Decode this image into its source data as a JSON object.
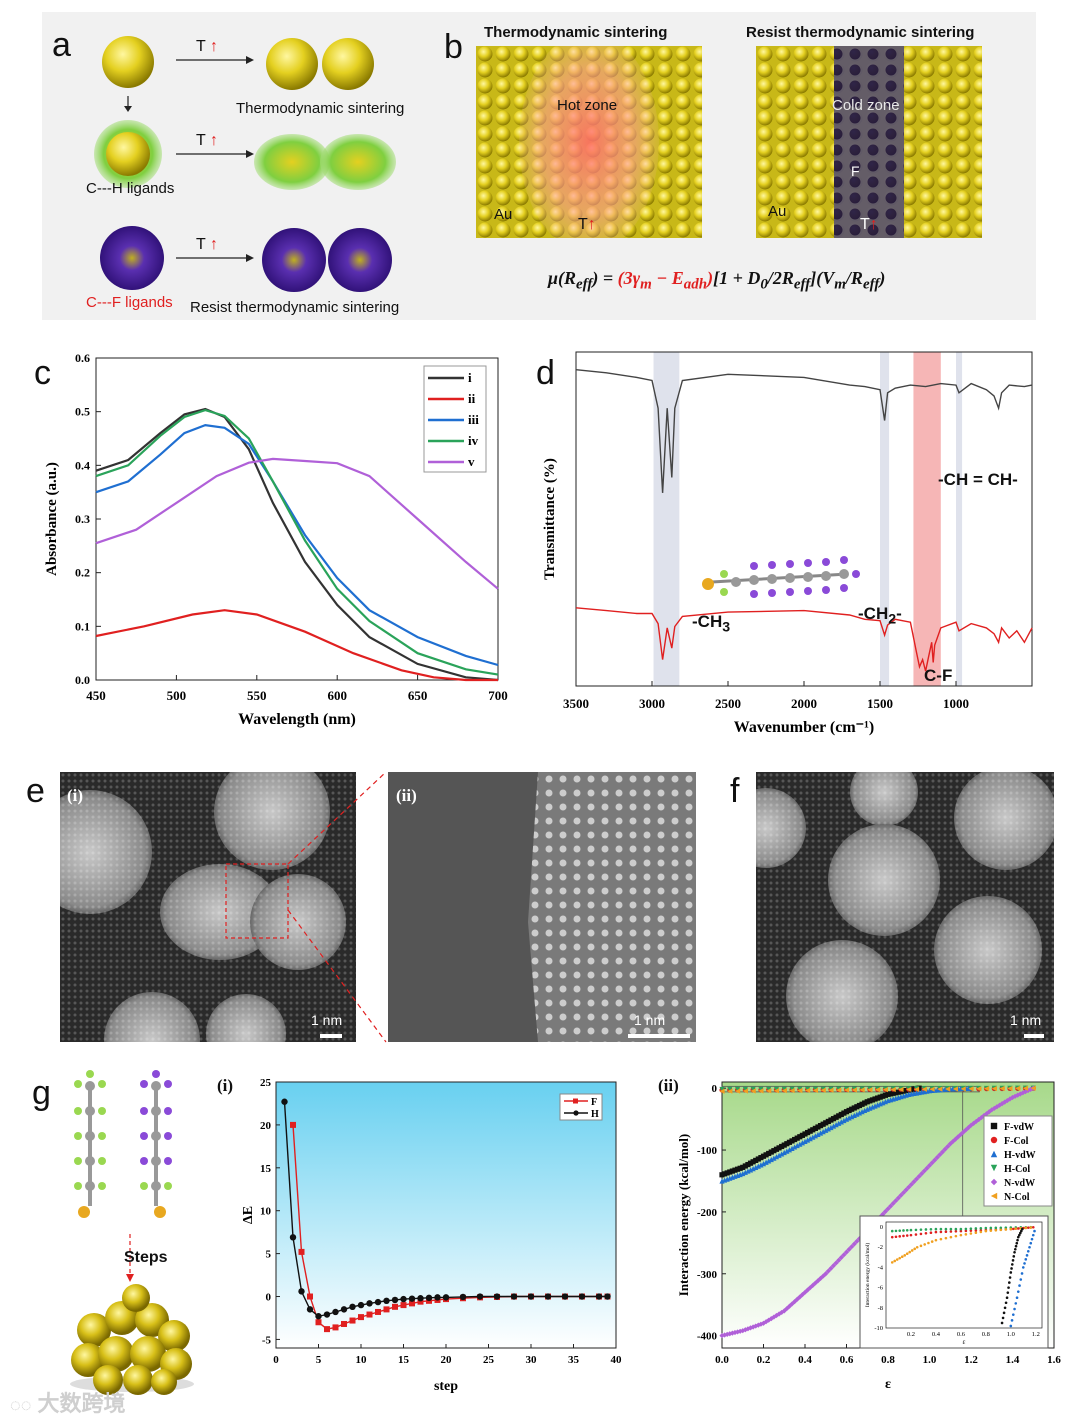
{
  "panels": {
    "a": "a",
    "b": "b",
    "c": "c",
    "d": "d",
    "e": "e",
    "f": "f",
    "g": "g"
  },
  "panel_a": {
    "arrow_label": "T",
    "thermo": "Thermodynamic sintering",
    "ch_ligands": "C---H ligands",
    "cf_ligands": "C---F ligands",
    "resist": "Resist thermodynamic sintering"
  },
  "panel_b": {
    "title_left": "Thermodynamic sintering",
    "title_right": "Resist thermodynamic sintering",
    "hot_zone": "Hot zone",
    "cold_zone": "Cold zone",
    "au": "Au",
    "t": "T",
    "f": "F",
    "eq_mu": "μ(R",
    "eq_eff": "eff",
    "eq_mid": ") = ",
    "eq_red": "(3γ",
    "eq_m": "m",
    "eq_minus": " − E",
    "eq_adh": "adh",
    "eq_close": ")",
    "eq_rest": "[1 + D",
    "eq_0": "0",
    "eq_2r": "/2R",
    "eq_tail": "](V",
    "eq_vm": "m",
    "eq_rr": "/R",
    "eq_end": ")"
  },
  "panel_d": {
    "ch_ch": "-CH = CH-",
    "ch3": "-CH",
    "ch3_sub": "3",
    "ch2": "-CH",
    "ch2_sub": "2",
    "ch2_suffix": "-",
    "cf": "C-F"
  },
  "panel_e": {
    "i": "(i)",
    "ii": "(ii)",
    "scale": "1 nm"
  },
  "panel_f": {
    "scale": "1 nm"
  },
  "panel_g": {
    "steps": "Steps",
    "i": "(i)",
    "ii": "(ii)"
  },
  "colors": {
    "red": "#e02020",
    "black": "#222222",
    "blue": "#1f6fd1",
    "green": "#2aa35a",
    "purple": "#b060d8",
    "gold": "#d9c21f",
    "orange": "#f0a020"
  },
  "chart_data": [
    {
      "id": "c",
      "type": "line",
      "xlabel": "Wavelength (nm)",
      "ylabel": "Absorbance (a.u.)",
      "xlim": [
        450,
        700
      ],
      "ylim": [
        0,
        0.6
      ],
      "xticks": [
        450,
        500,
        550,
        600,
        650,
        700
      ],
      "yticks": [
        0.0,
        0.1,
        0.2,
        0.3,
        0.4,
        0.5,
        0.6
      ],
      "ytick_labels": [
        "0.0",
        "0.1",
        "0.2",
        "0.3",
        "0.4",
        "0.5",
        "0.6"
      ],
      "legend": [
        "i",
        "ii",
        "iii",
        "iv",
        "v"
      ],
      "series": [
        {
          "name": "i",
          "color": "#333333",
          "x": [
            450,
            470,
            490,
            505,
            518,
            530,
            545,
            560,
            580,
            600,
            620,
            650,
            680,
            700
          ],
          "y": [
            0.39,
            0.41,
            0.46,
            0.495,
            0.505,
            0.49,
            0.43,
            0.33,
            0.22,
            0.14,
            0.08,
            0.03,
            0.005,
            0.0
          ]
        },
        {
          "name": "ii",
          "color": "#e02020",
          "x": [
            450,
            480,
            510,
            530,
            550,
            580,
            610,
            640,
            660,
            680,
            700
          ],
          "y": [
            0.082,
            0.1,
            0.122,
            0.13,
            0.122,
            0.09,
            0.05,
            0.018,
            0.005,
            0.0,
            0.0
          ]
        },
        {
          "name": "iii",
          "color": "#1f6fd1",
          "x": [
            450,
            470,
            490,
            505,
            518,
            530,
            545,
            560,
            580,
            600,
            620,
            650,
            680,
            700
          ],
          "y": [
            0.35,
            0.37,
            0.42,
            0.46,
            0.475,
            0.47,
            0.44,
            0.37,
            0.27,
            0.19,
            0.13,
            0.08,
            0.045,
            0.028
          ]
        },
        {
          "name": "iv",
          "color": "#2aa35a",
          "x": [
            450,
            470,
            490,
            505,
            518,
            530,
            545,
            560,
            580,
            600,
            620,
            650,
            680,
            700
          ],
          "y": [
            0.38,
            0.4,
            0.455,
            0.49,
            0.503,
            0.492,
            0.45,
            0.37,
            0.26,
            0.17,
            0.11,
            0.05,
            0.02,
            0.01
          ]
        },
        {
          "name": "v",
          "color": "#b060d8",
          "x": [
            450,
            475,
            500,
            525,
            545,
            560,
            580,
            600,
            620,
            650,
            680,
            700
          ],
          "y": [
            0.255,
            0.28,
            0.33,
            0.38,
            0.405,
            0.412,
            0.408,
            0.404,
            0.38,
            0.3,
            0.22,
            0.17
          ]
        }
      ]
    },
    {
      "id": "d",
      "type": "line",
      "xlabel": "Wavenumber (cm⁻¹)",
      "ylabel": "Transmittance (%)",
      "xlim": [
        3500,
        500
      ],
      "xticks": [
        3500,
        3000,
        2500,
        2000,
        1500,
        1000
      ],
      "bands": [
        {
          "from": 2990,
          "to": 2820,
          "color": "#dfe2ec"
        },
        {
          "from": 1500,
          "to": 1440,
          "color": "#dfe2ec"
        },
        {
          "from": 1280,
          "to": 1100,
          "color": "#f6b6b6"
        },
        {
          "from": 1000,
          "to": 960,
          "color": "#dfe2ec"
        }
      ],
      "series": [
        {
          "name": "top",
          "color": "#444444",
          "x": [
            3500,
            3300,
            3100,
            3000,
            2960,
            2930,
            2900,
            2870,
            2850,
            2800,
            2500,
            2000,
            1700,
            1600,
            1500,
            1470,
            1450,
            1400,
            1300,
            1200,
            1100,
            1000,
            980,
            900,
            800,
            750,
            720,
            700,
            650,
            550,
            500
          ],
          "y": [
            0.95,
            0.93,
            0.9,
            0.88,
            0.7,
            0.15,
            0.7,
            0.25,
            0.7,
            0.88,
            0.92,
            0.9,
            0.85,
            0.84,
            0.82,
            0.62,
            0.8,
            0.83,
            0.85,
            0.84,
            0.86,
            0.85,
            0.8,
            0.86,
            0.82,
            0.78,
            0.7,
            0.8,
            0.85,
            0.84,
            0.85
          ]
        },
        {
          "name": "bottom",
          "color": "#e02020",
          "x": [
            3500,
            3300,
            3100,
            3000,
            2960,
            2930,
            2900,
            2870,
            2850,
            2800,
            2500,
            2000,
            1700,
            1600,
            1500,
            1470,
            1450,
            1400,
            1300,
            1260,
            1240,
            1220,
            1200,
            1180,
            1160,
            1150,
            1140,
            1100,
            1000,
            980,
            900,
            800,
            750,
            720,
            700,
            650,
            600,
            550,
            500
          ],
          "y": [
            0.46,
            0.44,
            0.42,
            0.42,
            0.35,
            0.1,
            0.32,
            0.18,
            0.33,
            0.4,
            0.43,
            0.44,
            0.41,
            0.38,
            0.37,
            0.27,
            0.34,
            0.38,
            0.36,
            0.15,
            0.05,
            0.1,
            0.02,
            0.12,
            0.22,
            0.08,
            0.2,
            0.32,
            0.36,
            0.3,
            0.35,
            0.32,
            0.28,
            0.22,
            0.32,
            0.25,
            0.3,
            0.22,
            0.32
          ]
        }
      ]
    },
    {
      "id": "g-i",
      "type": "line",
      "xlabel": "step",
      "ylabel": "ΔE",
      "xlim": [
        0,
        40
      ],
      "ylim": [
        -6,
        25
      ],
      "xticks": [
        0,
        5,
        10,
        15,
        20,
        25,
        30,
        35,
        40
      ],
      "yticks": [
        -5,
        0,
        5,
        10,
        15,
        20,
        25
      ],
      "legend": [
        "F",
        "H"
      ],
      "series": [
        {
          "name": "F",
          "color": "#e02020",
          "x": [
            2,
            3,
            4,
            5,
            6,
            7,
            8,
            9,
            10,
            11,
            12,
            13,
            14,
            15,
            16,
            17,
            18,
            19,
            20,
            22,
            24,
            26,
            28,
            30,
            32,
            34,
            36,
            38,
            39
          ],
          "y": [
            20,
            5.2,
            0,
            -3,
            -3.8,
            -3.6,
            -3.2,
            -2.8,
            -2.4,
            -2.1,
            -1.8,
            -1.5,
            -1.2,
            -1.0,
            -0.8,
            -0.6,
            -0.5,
            -0.4,
            -0.3,
            -0.2,
            -0.1,
            -0.05,
            0,
            0,
            0,
            0,
            0,
            0,
            0
          ]
        },
        {
          "name": "H",
          "color": "#111111",
          "x": [
            1,
            2,
            3,
            4,
            5,
            6,
            7,
            8,
            9,
            10,
            11,
            12,
            13,
            14,
            15,
            16,
            17,
            18,
            19,
            20,
            22,
            24,
            26,
            28,
            30,
            32,
            34,
            36,
            38,
            39
          ],
          "y": [
            22.7,
            6.9,
            0.6,
            -1.5,
            -2.3,
            -2.1,
            -1.8,
            -1.5,
            -1.2,
            -1.0,
            -0.8,
            -0.65,
            -0.5,
            -0.4,
            -0.3,
            -0.25,
            -0.2,
            -0.15,
            -0.1,
            -0.1,
            -0.05,
            0,
            0,
            0,
            0,
            0,
            0,
            0,
            0,
            0
          ]
        }
      ]
    },
    {
      "id": "g-ii",
      "type": "scatter",
      "xlabel": "ε",
      "ylabel": "Interaction energy (kcal/mol)",
      "xlim": [
        0,
        1.6
      ],
      "ylim": [
        -420,
        10
      ],
      "xticks": [
        0.0,
        0.2,
        0.4,
        0.6,
        0.8,
        1.0,
        1.2,
        1.4,
        1.6
      ],
      "xtick_labels": [
        "0.0",
        "0.2",
        "0.4",
        "0.6",
        "0.8",
        "1.0",
        "1.2",
        "1.4",
        "1.6"
      ],
      "yticks": [
        0,
        -100,
        -200,
        -300,
        -400
      ],
      "legend": [
        "F-vdW",
        "F-Col",
        "H-vdW",
        "H-Col",
        "N-vdW",
        "N-Col"
      ],
      "series": [
        {
          "name": "F-vdW",
          "color": "#111111",
          "x": [
            0.0,
            0.1,
            0.2,
            0.3,
            0.4,
            0.5,
            0.6,
            0.7,
            0.8,
            0.9,
            0.95
          ],
          "y": [
            -140,
            -128,
            -110,
            -92,
            -74,
            -56,
            -38,
            -22,
            -10,
            -3,
            0
          ]
        },
        {
          "name": "F-Col",
          "color": "#e02020",
          "x": [
            0.0,
            0.3,
            0.6,
            0.9,
            1.2,
            1.5
          ],
          "y": [
            -3,
            -2.5,
            -2,
            -1.5,
            -1,
            0
          ]
        },
        {
          "name": "H-vdW",
          "color": "#1f6fd1",
          "x": [
            0.0,
            0.1,
            0.2,
            0.3,
            0.4,
            0.5,
            0.6,
            0.7,
            0.8,
            0.9,
            1.0,
            1.1,
            1.2
          ],
          "y": [
            -150,
            -138,
            -122,
            -104,
            -86,
            -68,
            -50,
            -34,
            -20,
            -10,
            -4,
            -1,
            0
          ]
        },
        {
          "name": "H-Col",
          "color": "#2aa35a",
          "x": [
            0.0,
            0.3,
            0.6,
            0.9,
            1.2,
            1.5
          ],
          "y": [
            -2,
            -1.8,
            -1.5,
            -1,
            -0.5,
            0
          ]
        },
        {
          "name": "N-vdW",
          "color": "#b060d8",
          "x": [
            0.0,
            0.1,
            0.2,
            0.3,
            0.4,
            0.5,
            0.6,
            0.7,
            0.8,
            0.9,
            1.0,
            1.1,
            1.2,
            1.3,
            1.4,
            1.5
          ],
          "y": [
            -400,
            -392,
            -380,
            -360,
            -330,
            -300,
            -265,
            -230,
            -195,
            -160,
            -125,
            -90,
            -60,
            -35,
            -15,
            0
          ]
        },
        {
          "name": "N-Col",
          "color": "#f0a020",
          "x": [
            0.0,
            0.3,
            0.6,
            0.9,
            1.2,
            1.5
          ],
          "y": [
            -5,
            -4,
            -3,
            -2,
            -1,
            0
          ]
        }
      ],
      "inset": {
        "ylabel": "Interaction energy (kcal/mol)",
        "xlabel": "ε",
        "xlim": [
          0,
          1.25
        ],
        "ylim": [
          -10,
          0.5
        ],
        "xticks": [
          0.2,
          0.4,
          0.6,
          0.8,
          1.0,
          1.2
        ],
        "yticks": [
          0,
          -2,
          -4,
          -6,
          -8,
          -10
        ],
        "series": [
          {
            "name": "F-Col",
            "color": "#e02020",
            "x": [
              0.05,
              0.2,
              0.4,
              0.6,
              0.8,
              1.0,
              1.1,
              1.2
            ],
            "y": [
              -1.0,
              -0.8,
              -0.5,
              -0.4,
              -0.3,
              -0.2,
              -0.1,
              0
            ]
          },
          {
            "name": "H-Col",
            "color": "#2aa35a",
            "x": [
              0.05,
              0.2,
              0.4,
              0.6,
              0.8,
              1.0,
              1.2
            ],
            "y": [
              -0.4,
              -0.3,
              -0.2,
              -0.2,
              -0.1,
              -0.05,
              0
            ]
          },
          {
            "name": "N-Col",
            "color": "#f0a020",
            "x": [
              0.05,
              0.15,
              0.25,
              0.4,
              0.6,
              0.8,
              1.0,
              1.2
            ],
            "y": [
              -3.5,
              -2.8,
              -2.0,
              -1.3,
              -0.8,
              -0.4,
              -0.2,
              0
            ]
          },
          {
            "name": "F-vdW",
            "color": "#111111",
            "x": [
              0.93,
              0.97,
              1.0,
              1.03,
              1.06,
              1.1
            ],
            "y": [
              -9.5,
              -7,
              -4.5,
              -2.5,
              -1,
              0
            ]
          },
          {
            "name": "H-vdW",
            "color": "#1f6fd1",
            "x": [
              1.0,
              1.05,
              1.1,
              1.15,
              1.2
            ],
            "y": [
              -9.8,
              -7,
              -4,
              -2,
              0
            ]
          }
        ]
      }
    }
  ],
  "watermark": "大数跨境"
}
